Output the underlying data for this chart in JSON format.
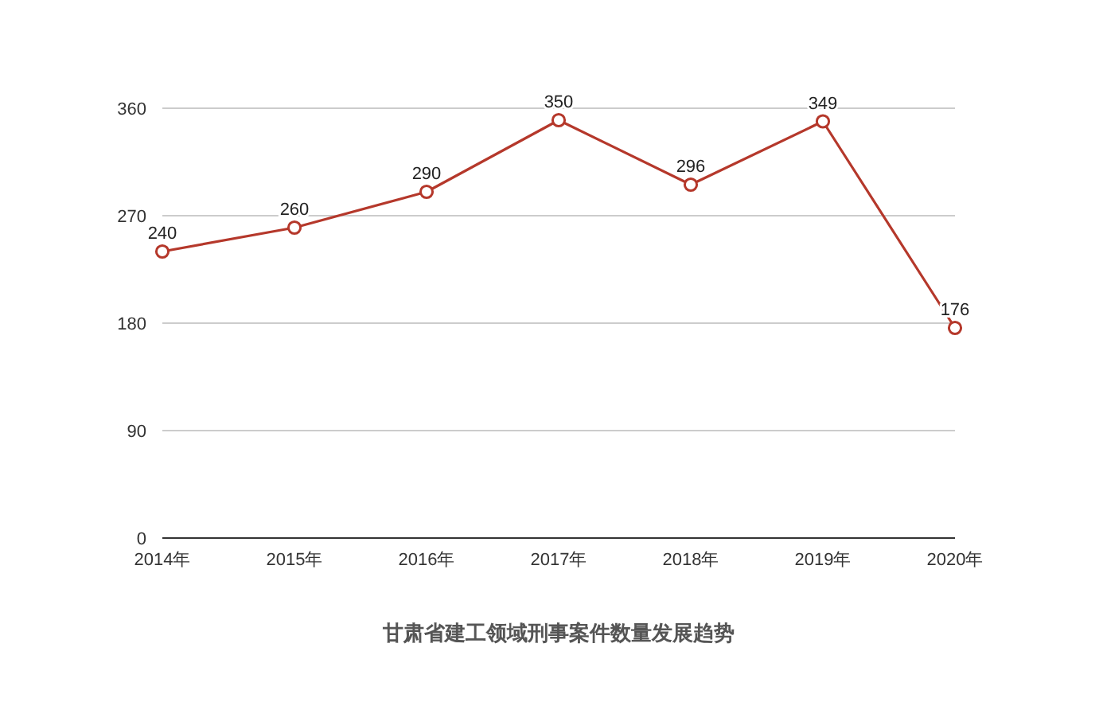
{
  "chart_data": {
    "type": "line",
    "title": "甘肃省建工领域刑事案件数量发展趋势",
    "categories": [
      "2014年",
      "2015年",
      "2016年",
      "2017年",
      "2018年",
      "2019年",
      "2020年"
    ],
    "series": [
      {
        "color": "#b5382b",
        "values": [
          240,
          260,
          290,
          350,
          296,
          349,
          176
        ]
      }
    ],
    "ylim": [
      0,
      360
    ],
    "yticks": [
      0,
      90,
      180,
      270,
      360
    ],
    "grid": "y",
    "data_labels": true,
    "marker": "circle"
  }
}
